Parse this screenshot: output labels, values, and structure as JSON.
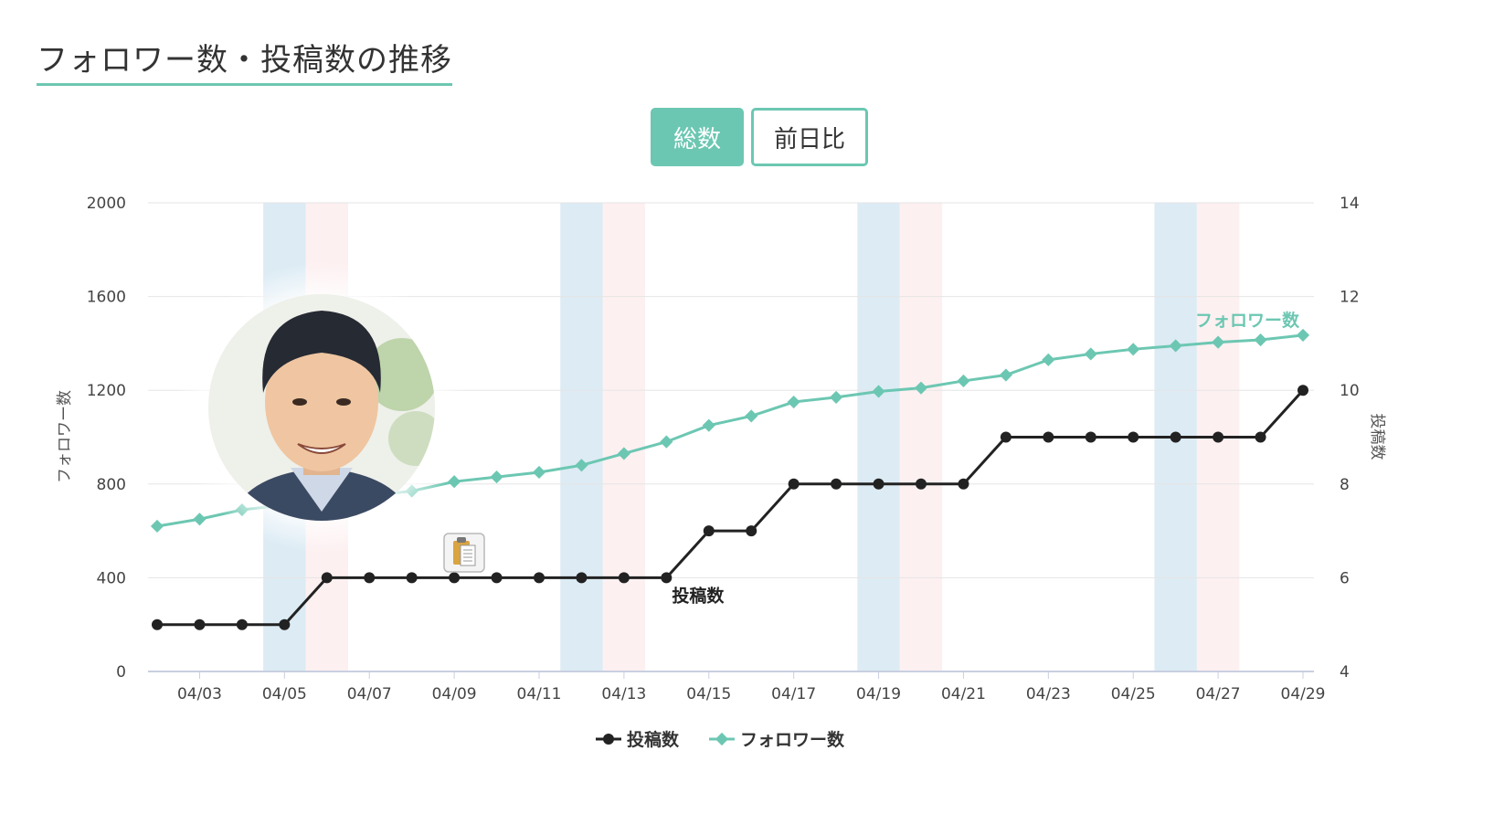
{
  "page": {
    "title": "フォロワー数・投稿数の推移"
  },
  "toggle": {
    "total_label": "総数",
    "diff_label": "前日比",
    "active": "total"
  },
  "colors": {
    "followers": "#6cc7b2",
    "posts": "#222222",
    "saturday_band": "#dcebf4",
    "sunday_band": "#fdf0f1",
    "grid": "#e5e5e5"
  },
  "icons": {
    "clipboard": "clipboard-icon",
    "avatar": "avatar-photo"
  },
  "chart_data": {
    "type": "line",
    "x": [
      "04/02",
      "04/03",
      "04/04",
      "04/05",
      "04/06",
      "04/07",
      "04/08",
      "04/09",
      "04/10",
      "04/11",
      "04/12",
      "04/13",
      "04/14",
      "04/15",
      "04/16",
      "04/17",
      "04/18",
      "04/19",
      "04/20",
      "04/21",
      "04/22",
      "04/23",
      "04/24",
      "04/25",
      "04/26",
      "04/27",
      "04/28",
      "04/29"
    ],
    "xticks": [
      "04/03",
      "04/05",
      "04/07",
      "04/09",
      "04/11",
      "04/13",
      "04/15",
      "04/17",
      "04/19",
      "04/21",
      "04/23",
      "04/25",
      "04/27",
      "04/29"
    ],
    "series": [
      {
        "name": "投稿数",
        "axis": "right",
        "values": [
          5,
          5,
          5,
          5,
          6,
          6,
          6,
          6,
          6,
          6,
          6,
          6,
          6,
          7,
          7,
          8,
          8,
          8,
          8,
          8,
          9,
          9,
          9,
          9,
          9,
          9,
          9,
          10
        ]
      },
      {
        "name": "フォロワー数",
        "axis": "left",
        "values": [
          620,
          650,
          690,
          710,
          730,
          750,
          770,
          810,
          830,
          850,
          880,
          930,
          980,
          1050,
          1090,
          1150,
          1170,
          1195,
          1210,
          1240,
          1265,
          1330,
          1355,
          1375,
          1390,
          1405,
          1415,
          1435
        ]
      }
    ],
    "ylabel_left": "フォロワー数",
    "ylabel_right": "投稿数",
    "ylim_left": [
      0,
      2000
    ],
    "yticks_left": [
      0,
      400,
      800,
      1200,
      1600,
      2000
    ],
    "ylim_right": [
      4,
      14
    ],
    "yticks_right": [
      4,
      6,
      8,
      10,
      12,
      14
    ],
    "weekend_bands": [
      {
        "saturday": "04/05",
        "sunday": "04/06"
      },
      {
        "saturday": "04/12",
        "sunday": "04/13"
      },
      {
        "saturday": "04/19",
        "sunday": "04/20"
      },
      {
        "saturday": "04/26",
        "sunday": "04/27"
      }
    ],
    "legend": [
      "投稿数",
      "フォロワー数"
    ],
    "legend_position": "bottom",
    "grid": true
  }
}
